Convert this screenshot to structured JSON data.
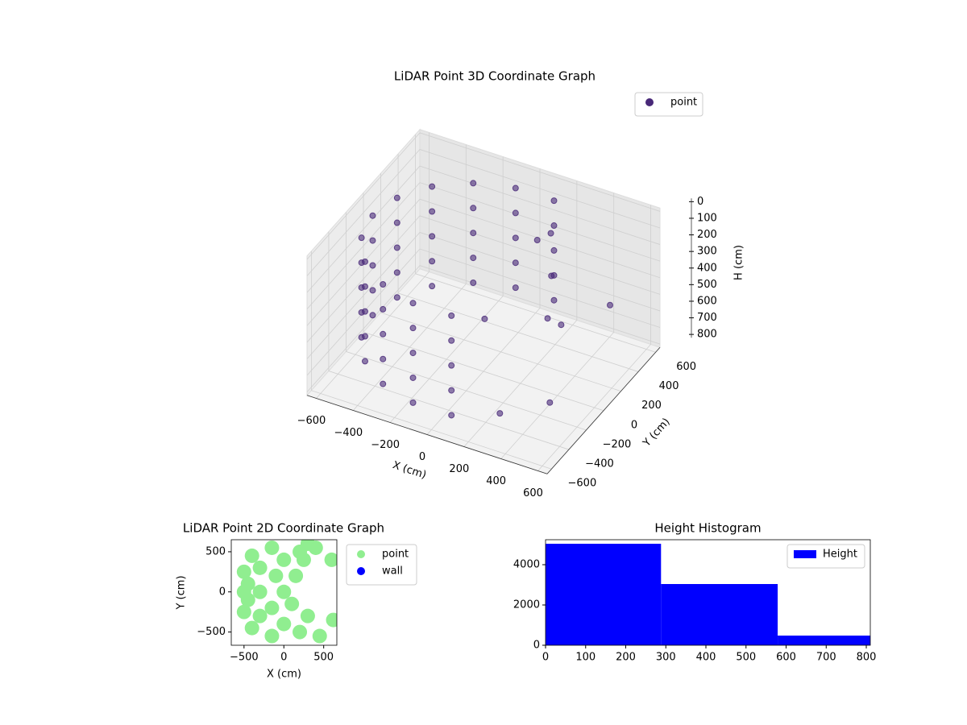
{
  "chart_data": [
    {
      "type": "scatter3d",
      "title": "LiDAR Point 3D Coordinate Graph",
      "xlabel": "X (cm)",
      "ylabel": "Y (cm)",
      "zlabel": "H (cm)",
      "xlim": [
        -650,
        650
      ],
      "ylim": [
        -650,
        650
      ],
      "zlim": [
        820,
        -20
      ],
      "xticks": [
        {
          "value": -600,
          "label": "−600"
        },
        {
          "value": -400,
          "label": "−400"
        },
        {
          "value": -200,
          "label": "−200"
        },
        0,
        200,
        400,
        600
      ],
      "yticks": [
        {
          "value": -600,
          "label": "−600"
        },
        {
          "value": -400,
          "label": "−400"
        },
        {
          "value": -200,
          "label": "−200"
        },
        0,
        200,
        400,
        600
      ],
      "zticks": [
        0,
        100,
        200,
        300,
        400,
        500,
        600,
        700,
        800
      ],
      "grid": true,
      "series": [
        {
          "name": "point",
          "color": "#482878",
          "x": [
            104,
            104,
            104,
            104,
            104,
            -104,
            -104,
            -104,
            -104,
            -104,
            -300,
            -300,
            -300,
            -300,
            -300,
            -460,
            -460,
            -460,
            -460,
            -460,
            -564,
            -564,
            -564,
            -564,
            -564,
            -600,
            -600,
            -600,
            -600,
            -600,
            -564,
            -564,
            -564,
            -564,
            -564,
            -460,
            -460,
            -460,
            -460,
            -460,
            -300,
            -300,
            -300,
            -300,
            -300,
            -104,
            -104,
            -104,
            -104,
            -104,
            104,
            104,
            104,
            104,
            104,
            150,
            200,
            250,
            300,
            350,
            450,
            500,
            300,
            100
          ],
          "y": [
            591,
            591,
            591,
            591,
            591,
            591,
            591,
            591,
            591,
            591,
            520,
            520,
            520,
            520,
            520,
            386,
            386,
            386,
            386,
            386,
            205,
            205,
            205,
            205,
            205,
            0,
            0,
            0,
            0,
            0,
            -205,
            -205,
            -205,
            -205,
            -205,
            -386,
            -386,
            -386,
            -386,
            -386,
            -520,
            -520,
            -520,
            -520,
            -520,
            -591,
            -591,
            -591,
            -591,
            -591,
            -591,
            -591,
            -591,
            -591,
            -591,
            300,
            350,
            250,
            100,
            150,
            500,
            -300,
            -450,
            -200
          ],
          "z": [
            100,
            250,
            400,
            550,
            700,
            100,
            250,
            400,
            550,
            700,
            100,
            250,
            400,
            550,
            700,
            100,
            250,
            400,
            550,
            700,
            100,
            250,
            400,
            550,
            700,
            100,
            250,
            400,
            550,
            700,
            100,
            250,
            400,
            550,
            700,
            100,
            250,
            400,
            550,
            700,
            100,
            250,
            400,
            550,
            700,
            100,
            250,
            400,
            550,
            700,
            100,
            250,
            400,
            550,
            700,
            150,
            120,
            300,
            450,
            500,
            550,
            650,
            700,
            350
          ]
        }
      ]
    },
    {
      "type": "scatter",
      "title": "LiDAR Point 2D Coordinate Graph",
      "xlabel": "X (cm)",
      "ylabel": "Y (cm)",
      "xlim": [
        -660,
        665
      ],
      "ylim": [
        -665,
        650
      ],
      "xticks": [
        {
          "value": -500,
          "label": "−500"
        },
        0,
        500
      ],
      "yticks": [
        {
          "value": -500,
          "label": "−500"
        },
        0,
        500
      ],
      "series": [
        {
          "name": "point",
          "color": "#90ee90",
          "x": [
            0,
            -300,
            -500,
            -300,
            -300,
            0,
            0,
            200,
            200,
            -150,
            -150,
            -500,
            -500,
            -400,
            -400,
            150,
            100,
            250,
            400,
            300,
            450,
            600,
            620,
            300,
            -100,
            -150,
            -450,
            -450
          ],
          "y": [
            0,
            0,
            0,
            300,
            -300,
            400,
            -400,
            500,
            -500,
            550,
            -550,
            250,
            -250,
            450,
            -450,
            200,
            -150,
            400,
            550,
            -300,
            -550,
            400,
            -350,
            600,
            200,
            -200,
            100,
            -100
          ]
        },
        {
          "name": "wall",
          "color": "#0000ff",
          "x": [],
          "y": []
        }
      ]
    },
    {
      "type": "histogram",
      "title": "Height Histogram",
      "xlim": [
        0,
        810
      ],
      "ylim": [
        0,
        5240
      ],
      "xticks": [
        0,
        100,
        200,
        300,
        400,
        500,
        600,
        700,
        800
      ],
      "yticks": [
        0,
        2000,
        4000
      ],
      "bins": [
        0,
        288,
        579,
        810
      ],
      "series": [
        {
          "name": "Height",
          "color": "#0000ff",
          "values": [
            5040,
            3040,
            480
          ]
        }
      ]
    }
  ]
}
